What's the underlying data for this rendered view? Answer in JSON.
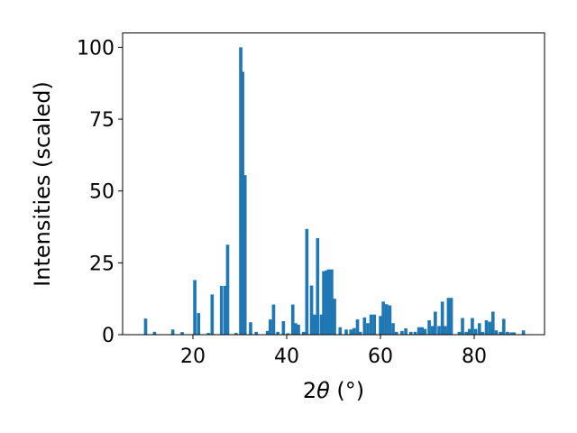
{
  "chart_data": {
    "type": "bar",
    "xlabel": "2θ (°)",
    "xlabel_parts": {
      "prefix": "2",
      "theta": "θ",
      "unit": " (°)"
    },
    "ylabel": "Intensities (scaled)",
    "xlim": [
      5,
      95
    ],
    "ylim": [
      0,
      105
    ],
    "xticks": [
      20,
      40,
      60,
      80
    ],
    "yticks": [
      0,
      25,
      50,
      75,
      100
    ],
    "grid": false,
    "bar_width": 0.7,
    "color": "#1f77b4",
    "points": [
      {
        "x": 9.9,
        "y": 5.6
      },
      {
        "x": 11.8,
        "y": 1.0
      },
      {
        "x": 15.7,
        "y": 1.8
      },
      {
        "x": 17.7,
        "y": 0.9
      },
      {
        "x": 20.4,
        "y": 19.0
      },
      {
        "x": 21.2,
        "y": 7.5
      },
      {
        "x": 23.3,
        "y": 0.6
      },
      {
        "x": 24.1,
        "y": 14.0
      },
      {
        "x": 26.1,
        "y": 17.0
      },
      {
        "x": 26.9,
        "y": 17.0
      },
      {
        "x": 27.4,
        "y": 31.3
      },
      {
        "x": 29.2,
        "y": 0.6
      },
      {
        "x": 30.2,
        "y": 100.0
      },
      {
        "x": 30.6,
        "y": 91.5
      },
      {
        "x": 31.1,
        "y": 55.5
      },
      {
        "x": 32.3,
        "y": 4.3
      },
      {
        "x": 33.5,
        "y": 1.0
      },
      {
        "x": 35.9,
        "y": 1.3
      },
      {
        "x": 36.5,
        "y": 5.3
      },
      {
        "x": 37.2,
        "y": 10.5
      },
      {
        "x": 38.1,
        "y": 1.0
      },
      {
        "x": 39.3,
        "y": 4.7
      },
      {
        "x": 40.3,
        "y": 0.5
      },
      {
        "x": 41.3,
        "y": 10.5
      },
      {
        "x": 41.9,
        "y": 4.0
      },
      {
        "x": 42.5,
        "y": 3.5
      },
      {
        "x": 43.6,
        "y": 1.0
      },
      {
        "x": 44.3,
        "y": 36.8
      },
      {
        "x": 45.3,
        "y": 17.1
      },
      {
        "x": 45.9,
        "y": 7.0
      },
      {
        "x": 46.6,
        "y": 33.6
      },
      {
        "x": 47.4,
        "y": 7.0
      },
      {
        "x": 47.9,
        "y": 22.1
      },
      {
        "x": 48.5,
        "y": 22.4
      },
      {
        "x": 49.0,
        "y": 22.7
      },
      {
        "x": 49.6,
        "y": 22.7
      },
      {
        "x": 50.2,
        "y": 12.5
      },
      {
        "x": 51.4,
        "y": 2.6
      },
      {
        "x": 52.7,
        "y": 1.8
      },
      {
        "x": 53.7,
        "y": 1.8
      },
      {
        "x": 54.4,
        "y": 2.3
      },
      {
        "x": 55.1,
        "y": 5.3
      },
      {
        "x": 55.7,
        "y": 1.0
      },
      {
        "x": 56.6,
        "y": 6.0
      },
      {
        "x": 57.3,
        "y": 4.0
      },
      {
        "x": 58.0,
        "y": 7.0
      },
      {
        "x": 58.7,
        "y": 7.0
      },
      {
        "x": 60.0,
        "y": 6.5
      },
      {
        "x": 60.6,
        "y": 11.5
      },
      {
        "x": 61.3,
        "y": 10.6
      },
      {
        "x": 62.0,
        "y": 10.2
      },
      {
        "x": 62.7,
        "y": 4.0
      },
      {
        "x": 63.4,
        "y": 1.0
      },
      {
        "x": 64.6,
        "y": 1.3
      },
      {
        "x": 65.4,
        "y": 2.2
      },
      {
        "x": 66.5,
        "y": 1.0
      },
      {
        "x": 67.4,
        "y": 1.0
      },
      {
        "x": 68.2,
        "y": 2.6
      },
      {
        "x": 68.9,
        "y": 2.6
      },
      {
        "x": 69.5,
        "y": 2.0
      },
      {
        "x": 70.4,
        "y": 5.0
      },
      {
        "x": 71.1,
        "y": 3.0
      },
      {
        "x": 71.7,
        "y": 8.0
      },
      {
        "x": 72.5,
        "y": 3.0
      },
      {
        "x": 73.2,
        "y": 11.5
      },
      {
        "x": 73.8,
        "y": 3.0
      },
      {
        "x": 74.5,
        "y": 12.8
      },
      {
        "x": 75.1,
        "y": 12.8
      },
      {
        "x": 76.8,
        "y": 1.0
      },
      {
        "x": 77.5,
        "y": 5.8
      },
      {
        "x": 78.3,
        "y": 1.0
      },
      {
        "x": 79.0,
        "y": 2.0
      },
      {
        "x": 79.6,
        "y": 5.8
      },
      {
        "x": 80.3,
        "y": 2.0
      },
      {
        "x": 81.1,
        "y": 4.0
      },
      {
        "x": 81.8,
        "y": 1.0
      },
      {
        "x": 82.6,
        "y": 5.0
      },
      {
        "x": 83.3,
        "y": 4.5
      },
      {
        "x": 84.0,
        "y": 8.0
      },
      {
        "x": 84.7,
        "y": 1.5
      },
      {
        "x": 85.6,
        "y": 1.0
      },
      {
        "x": 86.3,
        "y": 5.5
      },
      {
        "x": 87.1,
        "y": 1.0
      },
      {
        "x": 87.9,
        "y": 0.8
      },
      {
        "x": 88.5,
        "y": 0.8
      },
      {
        "x": 90.5,
        "y": 1.5
      }
    ]
  }
}
